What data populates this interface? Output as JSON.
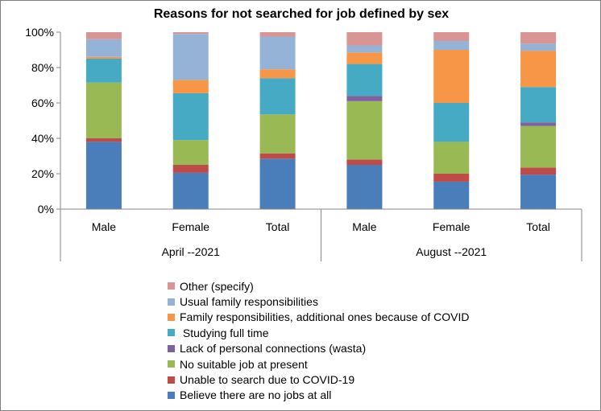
{
  "chart_data": {
    "type": "bar",
    "stacked": true,
    "percent": true,
    "title": "Reasons for not searched for job defined by sex",
    "xlabel": "",
    "ylabel": "",
    "ylim": [
      0,
      100
    ],
    "yticks": [
      "0%",
      "20%",
      "40%",
      "60%",
      "80%",
      "100%"
    ],
    "grid": false,
    "legend_position": "bottom",
    "groups": [
      {
        "label": "April --2021",
        "categories": [
          "Male",
          "Female",
          "Total"
        ]
      },
      {
        "label": "August --2021",
        "categories": [
          "Male",
          "Female",
          "Total"
        ]
      }
    ],
    "series": [
      {
        "name": "Believe there are no jobs at all",
        "color": "#4a7ebb",
        "values": [
          38,
          20.5,
          28.5,
          25,
          15.5,
          19.5
        ]
      },
      {
        "name": "Unable to search due to COVID-19",
        "color": "#be4b48",
        "values": [
          2,
          4.5,
          3,
          3,
          4.5,
          4
        ]
      },
      {
        "name": "No suitable job at present",
        "color": "#98b954",
        "values": [
          31.5,
          14,
          22,
          33,
          18,
          23.5
        ]
      },
      {
        "name": "Lack of personal connections (wasta)",
        "color": "#7e629f",
        "values": [
          0,
          0,
          0,
          3,
          0,
          2
        ]
      },
      {
        "name": " Studying full time",
        "color": "#46aac4",
        "values": [
          13.5,
          26.5,
          20.5,
          18,
          22,
          20
        ]
      },
      {
        "name": "Family responsibilities, additional ones because of COVID",
        "color": "#f79646",
        "values": [
          1,
          7.5,
          5,
          6.5,
          30,
          20.5
        ]
      },
      {
        "name": "Usual family responsibilities",
        "color": "#95b3d7",
        "values": [
          10,
          26,
          18.5,
          4,
          5,
          4
        ]
      },
      {
        "name": "Other (specify)",
        "color": "#d99594",
        "values": [
          4,
          1,
          2.5,
          7.5,
          5,
          6.5
        ]
      }
    ]
  }
}
